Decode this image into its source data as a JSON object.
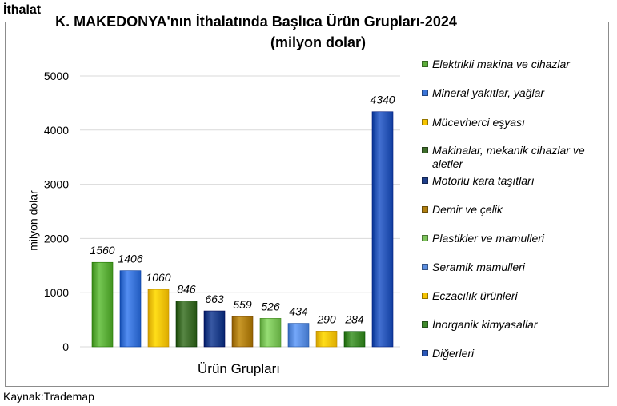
{
  "page": {
    "heading": "İthalat",
    "source": "Kaynak:Trademap"
  },
  "chart_data": {
    "type": "bar",
    "title_line1": "K. MAKEDONYA'nın İthalatında Başlıca Ürün Grupları-2024",
    "title_line2": "(milyon dolar)",
    "xlabel": "Ürün Grupları",
    "ylabel": "milyon dolar",
    "ylim": [
      0,
      5000
    ],
    "yticks": [
      0,
      1000,
      2000,
      3000,
      4000,
      5000
    ],
    "grid": true,
    "legend_position": "right",
    "categories": [
      "Elektrikli makina ve cihazlar",
      "Mineral yakıtlar, yağlar",
      "Mücevherci eşyası",
      "Makinalar, mekanik cihazlar ve aletler",
      "Motorlu kara taşıtları",
      "Demir ve çelik",
      "Plastikler ve mamulleri",
      "Seramik mamulleri",
      "Eczacılık ürünleri",
      "İnorganik kimyasallar",
      "Diğerleri"
    ],
    "values": [
      1560,
      1406,
      1060,
      846,
      663,
      559,
      526,
      434,
      290,
      284,
      4340
    ],
    "colors": [
      "#5cae3a",
      "#3a74d8",
      "#f6c400",
      "#3e6d2b",
      "#1f3f8a",
      "#b07f10",
      "#7dc45b",
      "#5b8ee0",
      "#f6c400",
      "#3f8a2c",
      "#2a57b8"
    ]
  }
}
